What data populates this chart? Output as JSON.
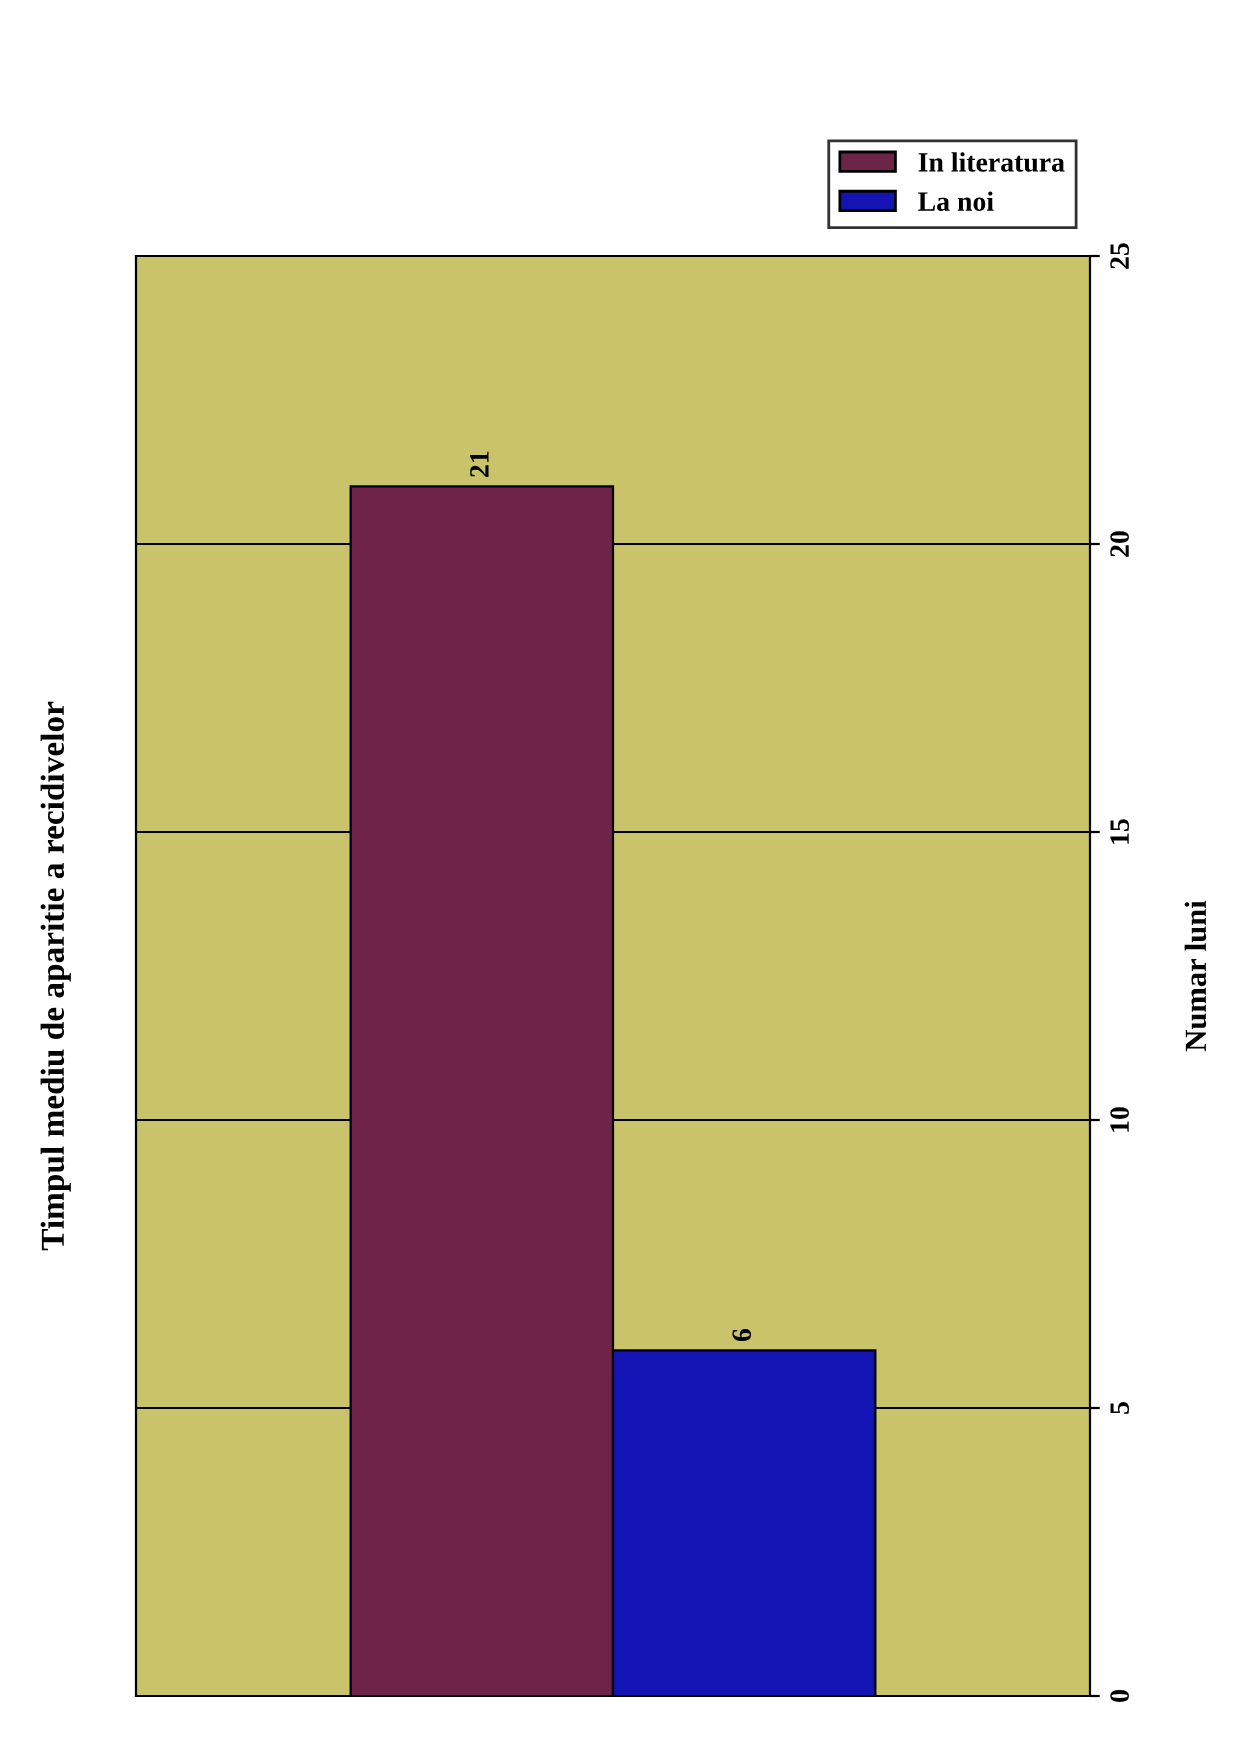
{
  "chart_data": {
    "type": "bar",
    "title": "Timpul mediu de aparitie a recidivelor",
    "ylabel": "Numar luni",
    "categories": [
      null
    ],
    "series": [
      {
        "name": "In literatura",
        "color": "#6e2448",
        "values": [
          21
        ]
      },
      {
        "name": "La noi",
        "color": "#1414b4",
        "values": [
          6
        ]
      }
    ],
    "ylim": [
      0,
      25
    ],
    "yticks": [
      0,
      5,
      10,
      15,
      20,
      25
    ],
    "grid": "y",
    "legend": "top right",
    "data_labels": true
  }
}
